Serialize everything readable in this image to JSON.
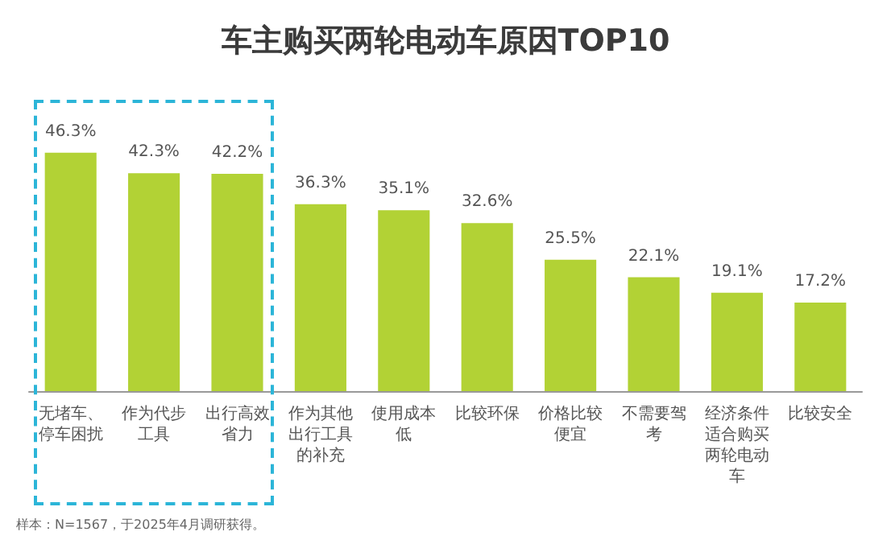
{
  "chart_data": {
    "type": "bar",
    "title": "车主购买两轮电动车原因TOP10",
    "categories": [
      "无堵车、停车困扰",
      "作为代步工具",
      "出行高效省力",
      "作为其他出行工具的补充",
      "使用成本低",
      "比较环保",
      "价格比较便宜",
      "不需要驾考",
      "经济条件适合购买两轮电动车",
      "比较安全"
    ],
    "values": [
      46.3,
      42.3,
      42.2,
      36.3,
      35.1,
      32.6,
      25.5,
      22.1,
      19.1,
      17.2
    ],
    "value_labels": [
      "46.3%",
      "42.3%",
      "42.2%",
      "36.3%",
      "35.1%",
      "32.6%",
      "25.5%",
      "22.1%",
      "19.1%",
      "17.2%"
    ],
    "color": "#b2d235",
    "annotations": [
      "样本：N=1567，于2025年4月调研获得。"
    ]
  }
}
